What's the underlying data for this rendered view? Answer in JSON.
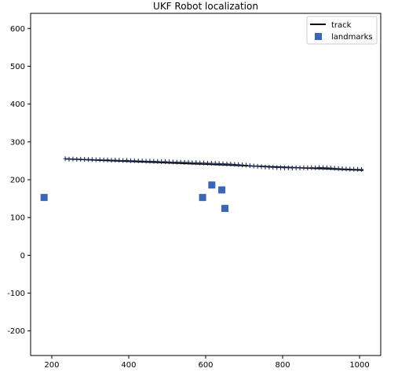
{
  "chart_data": {
    "type": "scatter",
    "title": "UKF Robot localization",
    "xlabel": "",
    "ylabel": "",
    "xlim": [
      145,
      1055
    ],
    "ylim": [
      -265,
      640
    ],
    "xticks": [
      200,
      400,
      600,
      800,
      1000
    ],
    "yticks": [
      -200,
      -100,
      0,
      100,
      200,
      300,
      400,
      500,
      600
    ],
    "grid": false,
    "legend_position": "top-right",
    "colors": {
      "track": "#000000",
      "estimate": "#1f2d56",
      "landmarks": "#3a66b5"
    },
    "series": [
      {
        "name": "track",
        "kind": "line",
        "x": [
          235,
          1010
        ],
        "y": [
          255,
          225
        ]
      },
      {
        "kind": "markers",
        "marker": "+",
        "x": [
          235,
          245,
          255,
          265,
          275,
          285,
          295,
          305,
          315,
          325,
          335,
          345,
          355,
          365,
          375,
          385,
          395,
          405,
          415,
          425,
          435,
          445,
          455,
          465,
          475,
          485,
          495,
          505,
          515,
          525,
          535,
          545,
          555,
          565,
          575,
          585,
          595,
          605,
          615,
          625,
          635,
          645,
          655,
          665,
          675,
          685,
          695,
          705,
          715,
          725,
          735,
          745,
          755,
          765,
          775,
          785,
          795,
          805,
          815,
          825,
          835,
          845,
          855,
          865,
          875,
          885,
          895,
          905,
          915,
          925,
          935,
          945,
          955,
          965,
          975,
          985,
          995,
          1005
        ],
        "y": [
          255.5,
          254.4,
          254.8,
          253.9,
          254.1,
          253.8,
          253.6,
          253.4,
          252.8,
          252.9,
          252.3,
          252.4,
          251.7,
          251.8,
          251.2,
          250.7,
          251.1,
          250.3,
          250.2,
          249.7,
          249.5,
          249.0,
          248.9,
          248.5,
          248.3,
          247.6,
          247.8,
          247.1,
          246.9,
          246.5,
          246.3,
          245.7,
          245.8,
          244.9,
          245.0,
          244.4,
          244.3,
          243.6,
          243.5,
          243.2,
          242.6,
          242.2,
          241.8,
          241.4,
          240.6,
          239.8,
          238.9,
          238.3,
          237.2,
          236.3,
          235.6,
          234.4,
          233.7,
          233.1,
          232.6,
          232.0,
          231.9,
          231.5,
          231.4,
          231.2,
          231.4,
          231.1,
          231.6,
          231.3,
          231.8,
          231.6,
          232.2,
          231.9,
          231.5,
          231.0,
          230.3,
          229.5,
          229.0,
          228.4,
          228.1,
          227.6,
          227.4,
          227.2
        ]
      },
      {
        "name": "landmarks",
        "kind": "markers",
        "marker": "square",
        "x": [
          180,
          592,
          616,
          642,
          650
        ],
        "y": [
          153,
          153,
          186,
          173,
          124
        ]
      }
    ]
  }
}
